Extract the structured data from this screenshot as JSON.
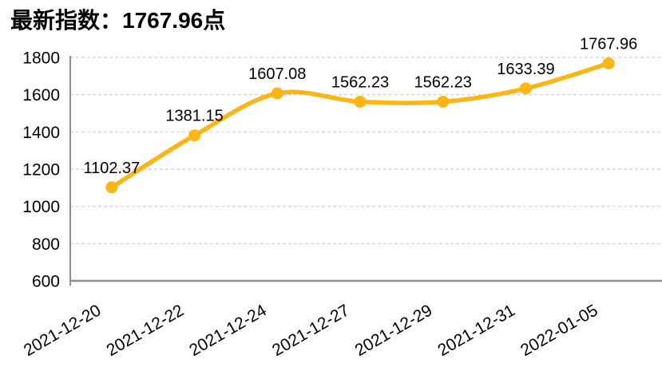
{
  "header": {
    "title": "最新指数：1767.96点"
  },
  "chart_data": {
    "type": "line",
    "title": "最新指数：1767.96点",
    "categories": [
      "2021-12-20",
      "2021-12-22",
      "2021-12-24",
      "2021-12-27",
      "2021-12-29",
      "2021-12-31",
      "2022-01-05"
    ],
    "values": [
      1102.37,
      1381.15,
      1607.08,
      1562.23,
      1562.23,
      1633.39,
      1767.96
    ],
    "data_labels": [
      "1102.37",
      "1381.15",
      "1607.08",
      "1562.23",
      "1562.23",
      "1633.39",
      "1767.96"
    ],
    "xlabel": "",
    "ylabel": "",
    "ylim": [
      600,
      1800
    ],
    "yticks": [
      600,
      800,
      1000,
      1200,
      1400,
      1600,
      1800
    ],
    "x_label_rotation_deg": -30,
    "grid": "horizontal-dashed",
    "legend_position": "none",
    "line_smoothed": true,
    "marker": "circle"
  },
  "colors": {
    "line": "#FBB514",
    "marker": "#FBB514",
    "axis": "#8C8C8C",
    "gridline": "#D6D6D6",
    "text": "#000000",
    "background": "#FFFFFF"
  }
}
